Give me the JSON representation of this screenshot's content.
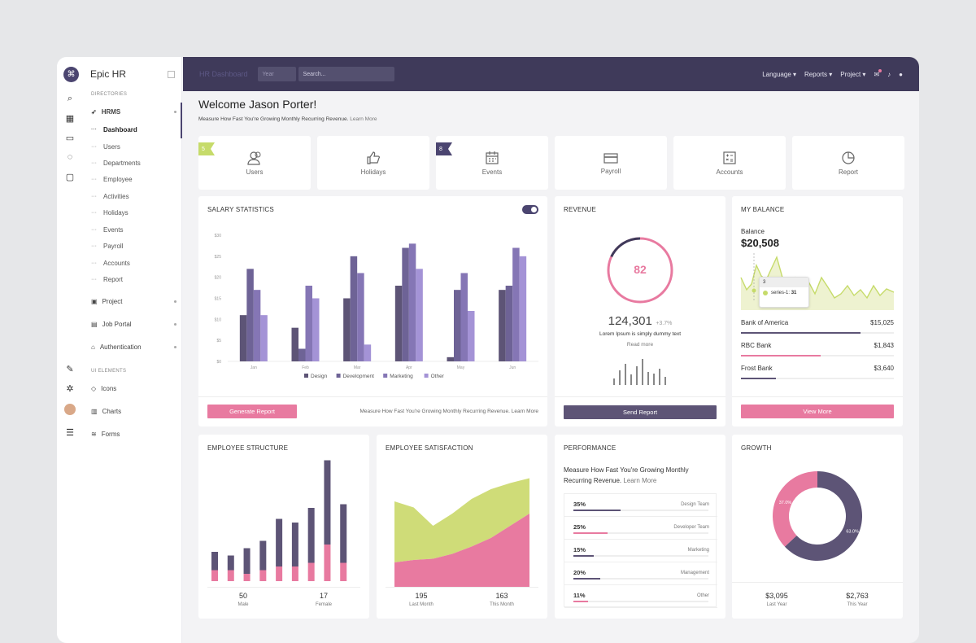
{
  "app": {
    "name": "Epic HR"
  },
  "sidebar": {
    "section1": "DIRECTORIES",
    "hrms": "HRMS",
    "sub": [
      "Dashboard",
      "Users",
      "Departments",
      "Employee",
      "Activities",
      "Holidays",
      "Events",
      "Payroll",
      "Accounts",
      "Report"
    ],
    "project": "Project",
    "job_portal": "Job Portal",
    "authentication": "Authentication",
    "section2": "UI ELEMENTS",
    "icons": "Icons",
    "charts": "Charts",
    "forms": "Forms"
  },
  "topbar": {
    "title": "HR Dashboard",
    "year_placeholder": "Year",
    "search_placeholder": "Search...",
    "language": "Language",
    "reports": "Reports",
    "project": "Project"
  },
  "welcome": {
    "title": "Welcome Jason Porter!",
    "subtitle": "Measure How Fast You're Growing Monthly Recurring Revenue.",
    "link": "Learn More"
  },
  "tiles": [
    {
      "label": "Users",
      "badge": "5",
      "badge_color": "#c6db6a",
      "icon": "users-icon"
    },
    {
      "label": "Holidays",
      "icon": "thumbs-up-icon"
    },
    {
      "label": "Events",
      "badge": "8",
      "badge_color": "#4b4570",
      "icon": "calendar-icon"
    },
    {
      "label": "Payroll",
      "icon": "credit-card-icon"
    },
    {
      "label": "Accounts",
      "icon": "calculator-icon"
    },
    {
      "label": "Report",
      "icon": "pie-chart-icon"
    }
  ],
  "salary": {
    "title": "SALARY STATISTICS",
    "button": "Generate Report",
    "footer": "Measure How Fast You're Growing Monthly Recurring Revenue.",
    "footer_link": "Learn More"
  },
  "revenue": {
    "title": "REVENUE",
    "percent": "82",
    "value": "124,301",
    "change": "+3.7%",
    "text": "Lorem Ipsum is simply dummy text",
    "read_more": "Read more",
    "button": "Send Report"
  },
  "balance": {
    "title": "MY BALANCE",
    "label": "Balance",
    "amount": "$20,508",
    "tooltip_x": "3",
    "tooltip_series": "series-1",
    "tooltip_value": "31",
    "banks": [
      {
        "name": "Bank of America",
        "value": "$15,025",
        "fill": 0.78,
        "color": "#5d5476"
      },
      {
        "name": "RBC Bank",
        "value": "$1,843",
        "fill": 0.52,
        "color": "#e87aa0"
      },
      {
        "name": "Frost Bank",
        "value": "$3,640",
        "fill": 0.23,
        "color": "#5d5476"
      }
    ],
    "button": "View More"
  },
  "structure": {
    "title": "EMPLOYEE STRUCTURE",
    "male": "50",
    "male_label": "Male",
    "female": "17",
    "female_label": "Female"
  },
  "satisfaction": {
    "title": "EMPLOYEE SATISFACTION",
    "last": "195",
    "last_label": "Last Month",
    "this": "163",
    "this_label": "This Month"
  },
  "performance": {
    "title": "PERFORMANCE",
    "text": "Measure How Fast You're Growing Monthly Recurring Revenue.",
    "link": "Learn More",
    "rows": [
      {
        "pct": "35%",
        "name": "Design Team",
        "fill": 0.35,
        "color": "#5d5476"
      },
      {
        "pct": "25%",
        "name": "Developer Team",
        "fill": 0.25,
        "color": "#e87aa0"
      },
      {
        "pct": "15%",
        "name": "Marketing",
        "fill": 0.15,
        "color": "#5d5476"
      },
      {
        "pct": "20%",
        "name": "Management",
        "fill": 0.2,
        "color": "#5d5476"
      },
      {
        "pct": "11%",
        "name": "Other",
        "fill": 0.11,
        "color": "#e87aa0"
      }
    ]
  },
  "growth": {
    "title": "GROWTH",
    "last": "$3,095",
    "last_label": "Last Year",
    "this": "$2,763",
    "this_label": "This Year"
  },
  "chart_data": [
    {
      "type": "bar",
      "title": "SALARY STATISTICS",
      "categories": [
        "Jan",
        "Feb",
        "Mar",
        "Apr",
        "May",
        "Jun"
      ],
      "yticks": [
        "$0",
        "$5",
        "$10",
        "$15",
        "$20",
        "$25",
        "$30"
      ],
      "ylim": [
        0,
        30
      ],
      "series": [
        {
          "name": "Design",
          "color": "#5d5476",
          "values": [
            11,
            8,
            15,
            18,
            1,
            17
          ]
        },
        {
          "name": "Development",
          "color": "#6e6396",
          "values": [
            22,
            3,
            25,
            27,
            17,
            18
          ]
        },
        {
          "name": "Marketing",
          "color": "#8576b5",
          "values": [
            17,
            18,
            21,
            28,
            21,
            27
          ]
        },
        {
          "name": "Other",
          "color": "#a493d6",
          "values": [
            11,
            15,
            4,
            22,
            12,
            25
          ]
        }
      ]
    },
    {
      "type": "bar",
      "title": "EMPLOYEE STRUCTURE",
      "stacked": true,
      "series": [
        {
          "name": "series-dark",
          "color": "#5d5476",
          "values": [
            5,
            4,
            7,
            8,
            13,
            12,
            15,
            23,
            16
          ]
        },
        {
          "name": "series-pink",
          "color": "#e87aa0",
          "values": [
            3,
            3,
            2,
            3,
            4,
            4,
            5,
            10,
            5
          ]
        }
      ]
    },
    {
      "type": "area",
      "title": "EMPLOYEE SATISFACTION",
      "series": [
        {
          "name": "upper",
          "color": "#cfdc78",
          "values": [
            70,
            65,
            50,
            60,
            72,
            80,
            85,
            89
          ]
        },
        {
          "name": "lower",
          "color": "#e87aa0",
          "values": [
            20,
            22,
            23,
            27,
            33,
            40,
            50,
            60
          ]
        }
      ]
    },
    {
      "type": "pie",
      "title": "GROWTH",
      "slices": [
        {
          "label": "63.0%",
          "value": 63,
          "color": "#5d5476"
        },
        {
          "label": "37.0%",
          "value": 37,
          "color": "#e87aa0"
        }
      ]
    }
  ]
}
